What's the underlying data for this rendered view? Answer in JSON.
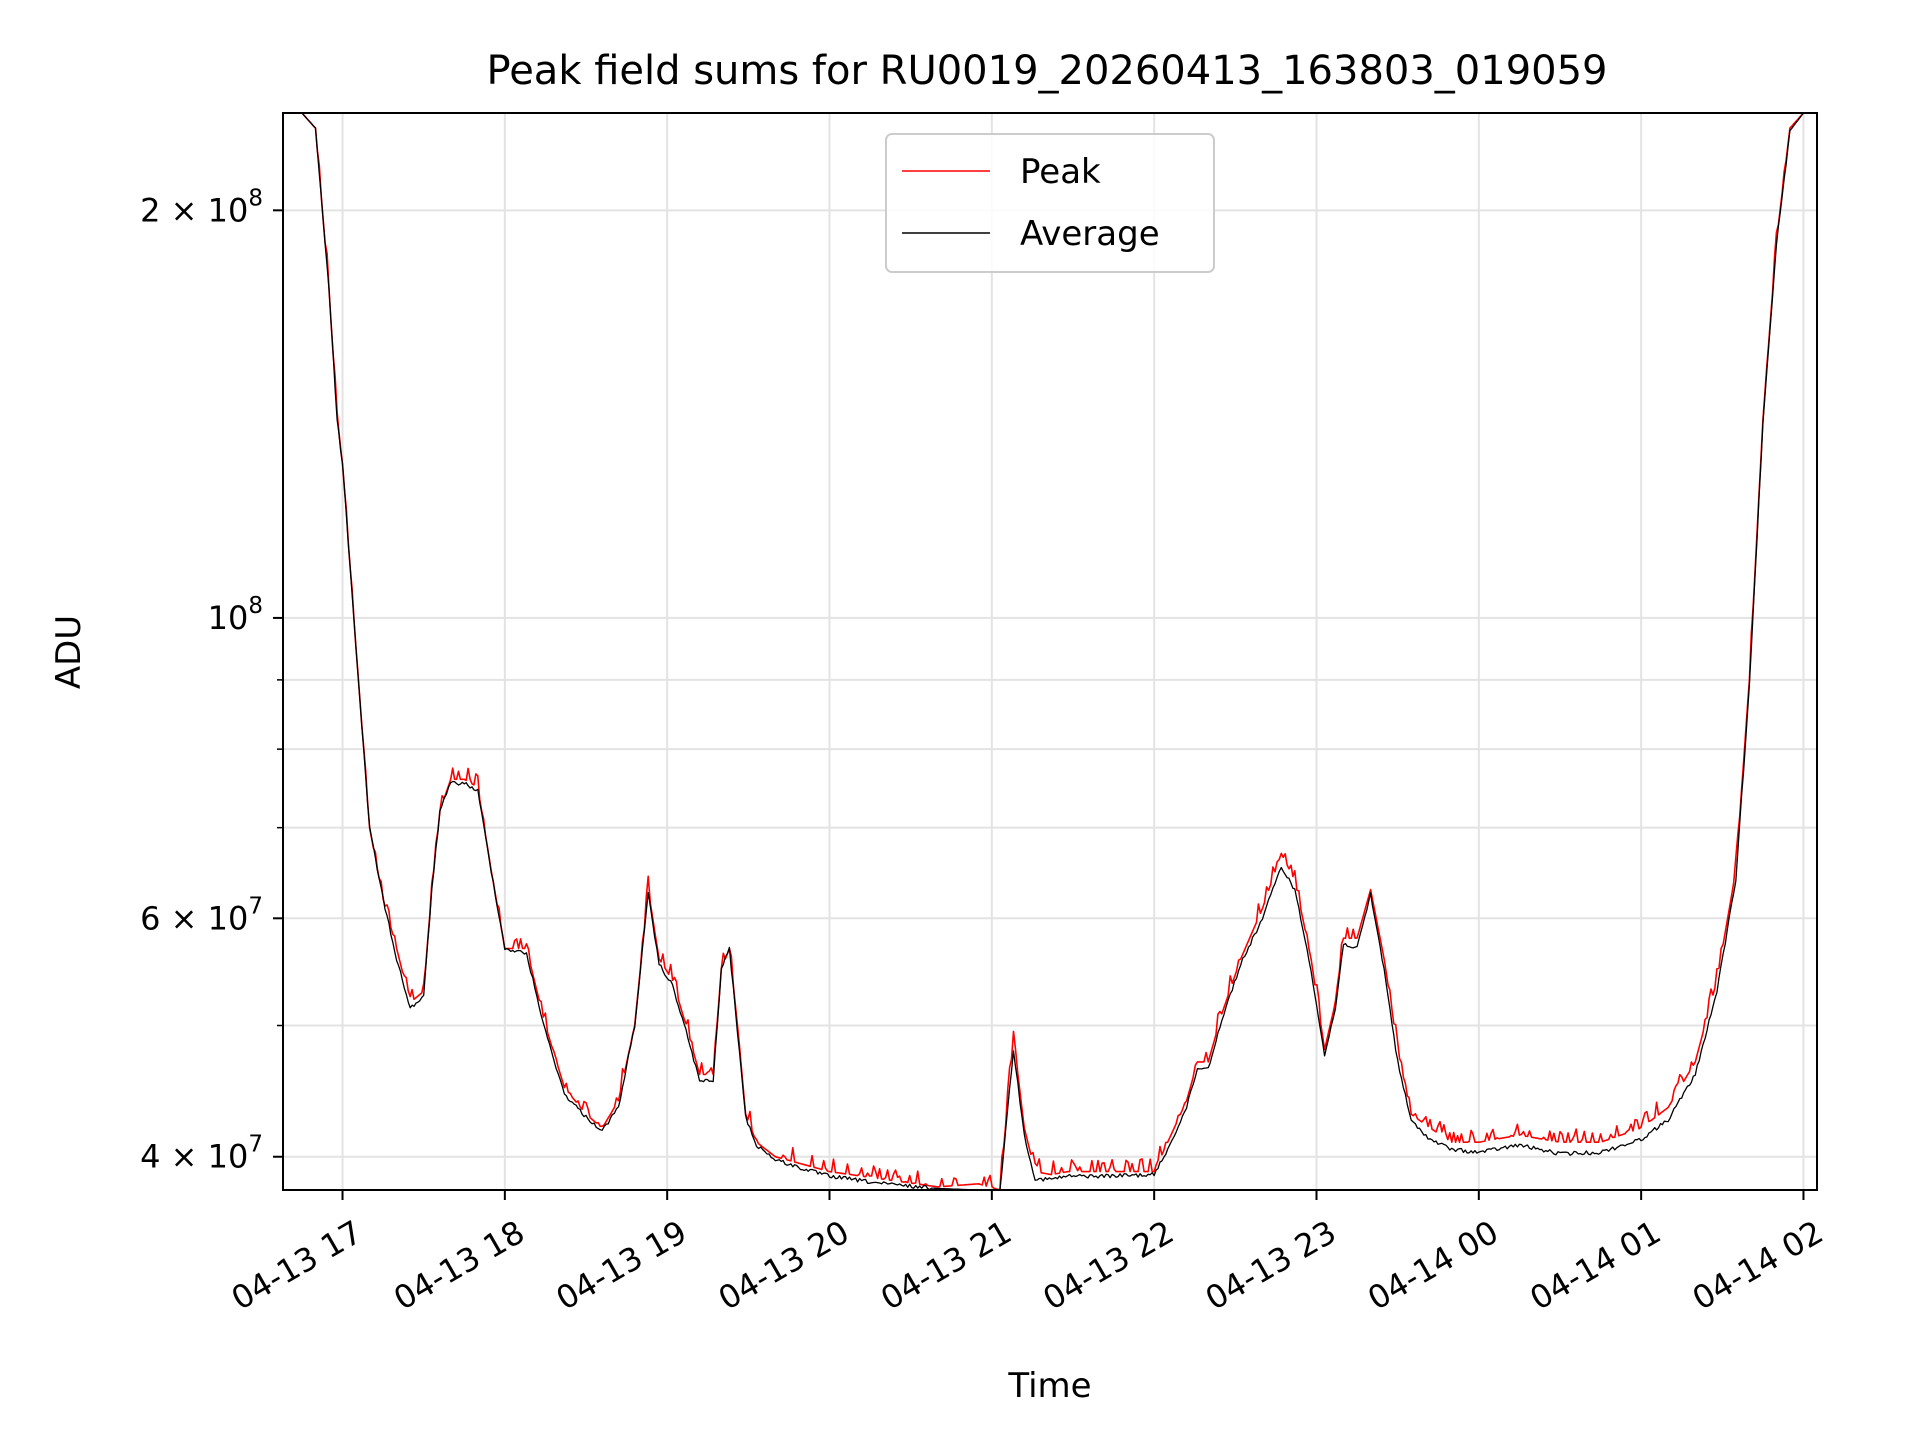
{
  "chart_data": {
    "type": "line",
    "title": "Peak field sums for RU0019_20260413_163803_019059",
    "xlabel": "Time",
    "ylabel": "ADU",
    "yscale": "log",
    "grid": true,
    "legend_position": "top-center",
    "xlim": [
      "2026-04-13 16:38",
      "2026-04-14 02:05"
    ],
    "ylim": [
      37800000,
      236000000
    ],
    "x_ticks": [
      "2026-04-13 17:00",
      "2026-04-13 18:00",
      "2026-04-13 19:00",
      "2026-04-13 20:00",
      "2026-04-13 21:00",
      "2026-04-13 22:00",
      "2026-04-13 23:00",
      "2026-04-14 00:00",
      "2026-04-14 01:00",
      "2026-04-14 02:00"
    ],
    "x_tick_labels": [
      "04-13 17",
      "04-13 18",
      "04-13 19",
      "04-13 20",
      "04-13 21",
      "04-13 22",
      "04-13 23",
      "04-14 00",
      "04-14 01",
      "04-14 02"
    ],
    "y_major_ticks": [
      {
        "value": 40000000,
        "label": "4 × 10⁷",
        "mantissa": "4 × 10",
        "exp": "7"
      },
      {
        "value": 60000000,
        "label": "6 × 10⁷",
        "mantissa": "6 × 10",
        "exp": "7"
      },
      {
        "value": 100000000,
        "label": "10⁸",
        "mantissa": "10",
        "exp": "8"
      },
      {
        "value": 200000000,
        "label": "2 × 10⁸",
        "mantissa": "2 × 10",
        "exp": "8"
      }
    ],
    "y_minor_ticks": [
      50000000,
      70000000,
      80000000,
      90000000
    ],
    "series": [
      {
        "name": "Peak",
        "color": "#ff0000",
        "noise_above_average": true,
        "x": [
          "2026-04-13 16:38",
          "2026-04-13 16:45",
          "2026-04-13 16:50",
          "2026-04-13 16:55",
          "2026-04-13 16:58",
          "2026-04-13 17:00",
          "2026-04-13 17:05",
          "2026-04-13 17:10",
          "2026-04-13 17:15",
          "2026-04-13 17:20",
          "2026-04-13 17:25",
          "2026-04-13 17:30",
          "2026-04-13 17:33",
          "2026-04-13 17:36",
          "2026-04-13 17:40",
          "2026-04-13 17:45",
          "2026-04-13 17:50",
          "2026-04-13 17:55",
          "2026-04-13 18:00",
          "2026-04-13 18:08",
          "2026-04-13 18:15",
          "2026-04-13 18:22",
          "2026-04-13 18:30",
          "2026-04-13 18:36",
          "2026-04-13 18:42",
          "2026-04-13 18:48",
          "2026-04-13 18:53",
          "2026-04-13 18:57",
          "2026-04-13 19:02",
          "2026-04-13 19:07",
          "2026-04-13 19:12",
          "2026-04-13 19:17",
          "2026-04-13 19:20",
          "2026-04-13 19:23",
          "2026-04-13 19:26",
          "2026-04-13 19:29",
          "2026-04-13 19:33",
          "2026-04-13 19:40",
          "2026-04-13 19:50",
          "2026-04-13 20:00",
          "2026-04-13 20:20",
          "2026-04-13 20:40",
          "2026-04-13 20:55",
          "2026-04-13 21:03",
          "2026-04-13 21:08",
          "2026-04-13 21:12",
          "2026-04-13 21:16",
          "2026-04-13 21:22",
          "2026-04-13 21:28",
          "2026-04-13 21:40",
          "2026-04-13 22:00",
          "2026-04-13 22:05",
          "2026-04-13 22:12",
          "2026-04-13 22:16",
          "2026-04-13 22:20",
          "2026-04-13 22:25",
          "2026-04-13 22:32",
          "2026-04-13 22:40",
          "2026-04-13 22:47",
          "2026-04-13 22:52",
          "2026-04-13 22:58",
          "2026-04-13 23:03",
          "2026-04-13 23:07",
          "2026-04-13 23:10",
          "2026-04-13 23:15",
          "2026-04-13 23:20",
          "2026-04-13 23:25",
          "2026-04-13 23:30",
          "2026-04-13 23:35",
          "2026-04-13 23:42",
          "2026-04-13 23:50",
          "2026-04-14 00:00",
          "2026-04-14 00:15",
          "2026-04-14 00:30",
          "2026-04-14 00:45",
          "2026-04-14 01:00",
          "2026-04-14 01:10",
          "2026-04-14 01:20",
          "2026-04-14 01:28",
          "2026-04-14 01:35",
          "2026-04-14 01:40",
          "2026-04-14 01:45",
          "2026-04-14 01:50",
          "2026-04-14 01:55",
          "2026-04-14 02:00",
          "2026-04-14 02:05"
        ],
        "y": [
          236000000,
          236000000,
          230000000,
          175000000,
          140000000,
          130000000,
          95000000,
          70000000,
          62000000,
          57000000,
          52000000,
          53000000,
          63000000,
          72000000,
          76000000,
          76000000,
          75000000,
          65000000,
          57000000,
          57000000,
          50000000,
          45000000,
          43000000,
          42000000,
          44000000,
          50000000,
          63000000,
          56000000,
          54000000,
          50000000,
          46000000,
          46000000,
          55000000,
          57000000,
          50000000,
          43000000,
          41000000,
          40000000,
          39500000,
          39000000,
          38500000,
          38000000,
          38200000,
          37800000,
          49000000,
          42000000,
          39000000,
          38800000,
          39000000,
          39000000,
          39000000,
          41000000,
          44000000,
          47000000,
          47000000,
          51000000,
          56000000,
          61000000,
          67000000,
          64000000,
          56000000,
          48000000,
          52000000,
          58000000,
          58000000,
          63000000,
          56000000,
          48000000,
          43000000,
          42000000,
          41000000,
          41000000,
          41500000,
          41000000,
          41000000,
          42000000,
          43500000,
          47000000,
          54000000,
          65000000,
          90000000,
          140000000,
          190000000,
          230000000,
          236000000,
          236000000
        ]
      },
      {
        "name": "Average",
        "color": "#000000",
        "x": [
          "2026-04-13 16:38",
          "2026-04-13 16:45",
          "2026-04-13 16:50",
          "2026-04-13 16:55",
          "2026-04-13 16:58",
          "2026-04-13 17:00",
          "2026-04-13 17:05",
          "2026-04-13 17:10",
          "2026-04-13 17:15",
          "2026-04-13 17:20",
          "2026-04-13 17:25",
          "2026-04-13 17:30",
          "2026-04-13 17:33",
          "2026-04-13 17:36",
          "2026-04-13 17:40",
          "2026-04-13 17:45",
          "2026-04-13 17:50",
          "2026-04-13 17:55",
          "2026-04-13 18:00",
          "2026-04-13 18:08",
          "2026-04-13 18:15",
          "2026-04-13 18:22",
          "2026-04-13 18:30",
          "2026-04-13 18:36",
          "2026-04-13 18:42",
          "2026-04-13 18:48",
          "2026-04-13 18:53",
          "2026-04-13 18:57",
          "2026-04-13 19:02",
          "2026-04-13 19:07",
          "2026-04-13 19:12",
          "2026-04-13 19:17",
          "2026-04-13 19:20",
          "2026-04-13 19:23",
          "2026-04-13 19:26",
          "2026-04-13 19:29",
          "2026-04-13 19:33",
          "2026-04-13 19:40",
          "2026-04-13 19:50",
          "2026-04-13 20:00",
          "2026-04-13 20:20",
          "2026-04-13 20:40",
          "2026-04-13 20:55",
          "2026-04-13 21:03",
          "2026-04-13 21:08",
          "2026-04-13 21:12",
          "2026-04-13 21:16",
          "2026-04-13 21:22",
          "2026-04-13 21:28",
          "2026-04-13 21:40",
          "2026-04-13 22:00",
          "2026-04-13 22:05",
          "2026-04-13 22:12",
          "2026-04-13 22:16",
          "2026-04-13 22:20",
          "2026-04-13 22:25",
          "2026-04-13 22:32",
          "2026-04-13 22:40",
          "2026-04-13 22:47",
          "2026-04-13 22:52",
          "2026-04-13 22:58",
          "2026-04-13 23:03",
          "2026-04-13 23:07",
          "2026-04-13 23:10",
          "2026-04-13 23:15",
          "2026-04-13 23:20",
          "2026-04-13 23:25",
          "2026-04-13 23:30",
          "2026-04-13 23:35",
          "2026-04-13 23:42",
          "2026-04-13 23:50",
          "2026-04-14 00:00",
          "2026-04-14 00:15",
          "2026-04-14 00:30",
          "2026-04-14 00:45",
          "2026-04-14 01:00",
          "2026-04-14 01:10",
          "2026-04-14 01:20",
          "2026-04-14 01:28",
          "2026-04-14 01:35",
          "2026-04-14 01:40",
          "2026-04-14 01:45",
          "2026-04-14 01:50",
          "2026-04-14 01:55",
          "2026-04-14 02:00",
          "2026-04-14 02:05"
        ],
        "y": [
          236000000,
          236000000,
          230000000,
          175000000,
          140000000,
          130000000,
          95000000,
          70000000,
          62000000,
          56000000,
          51500000,
          52500000,
          63000000,
          72000000,
          75500000,
          75500000,
          74500000,
          65000000,
          57000000,
          56500000,
          49500000,
          44500000,
          42800000,
          41800000,
          43500000,
          50000000,
          62500000,
          55500000,
          53500000,
          49500000,
          45500000,
          45500000,
          55000000,
          57000000,
          49500000,
          42800000,
          40800000,
          39800000,
          39200000,
          38700000,
          38200000,
          37900000,
          37800000,
          37800000,
          48000000,
          41500000,
          38500000,
          38500000,
          38700000,
          38700000,
          38800000,
          40500000,
          43500000,
          46500000,
          46500000,
          50500000,
          55500000,
          60000000,
          65500000,
          63000000,
          55000000,
          47500000,
          51500000,
          57500000,
          57000000,
          62500000,
          55000000,
          47000000,
          42500000,
          41200000,
          40500000,
          40300000,
          40800000,
          40200000,
          40300000,
          41200000,
          42600000,
          46000000,
          53000000,
          64000000,
          89000000,
          139000000,
          189000000,
          229000000,
          236000000,
          236000000
        ]
      }
    ]
  }
}
